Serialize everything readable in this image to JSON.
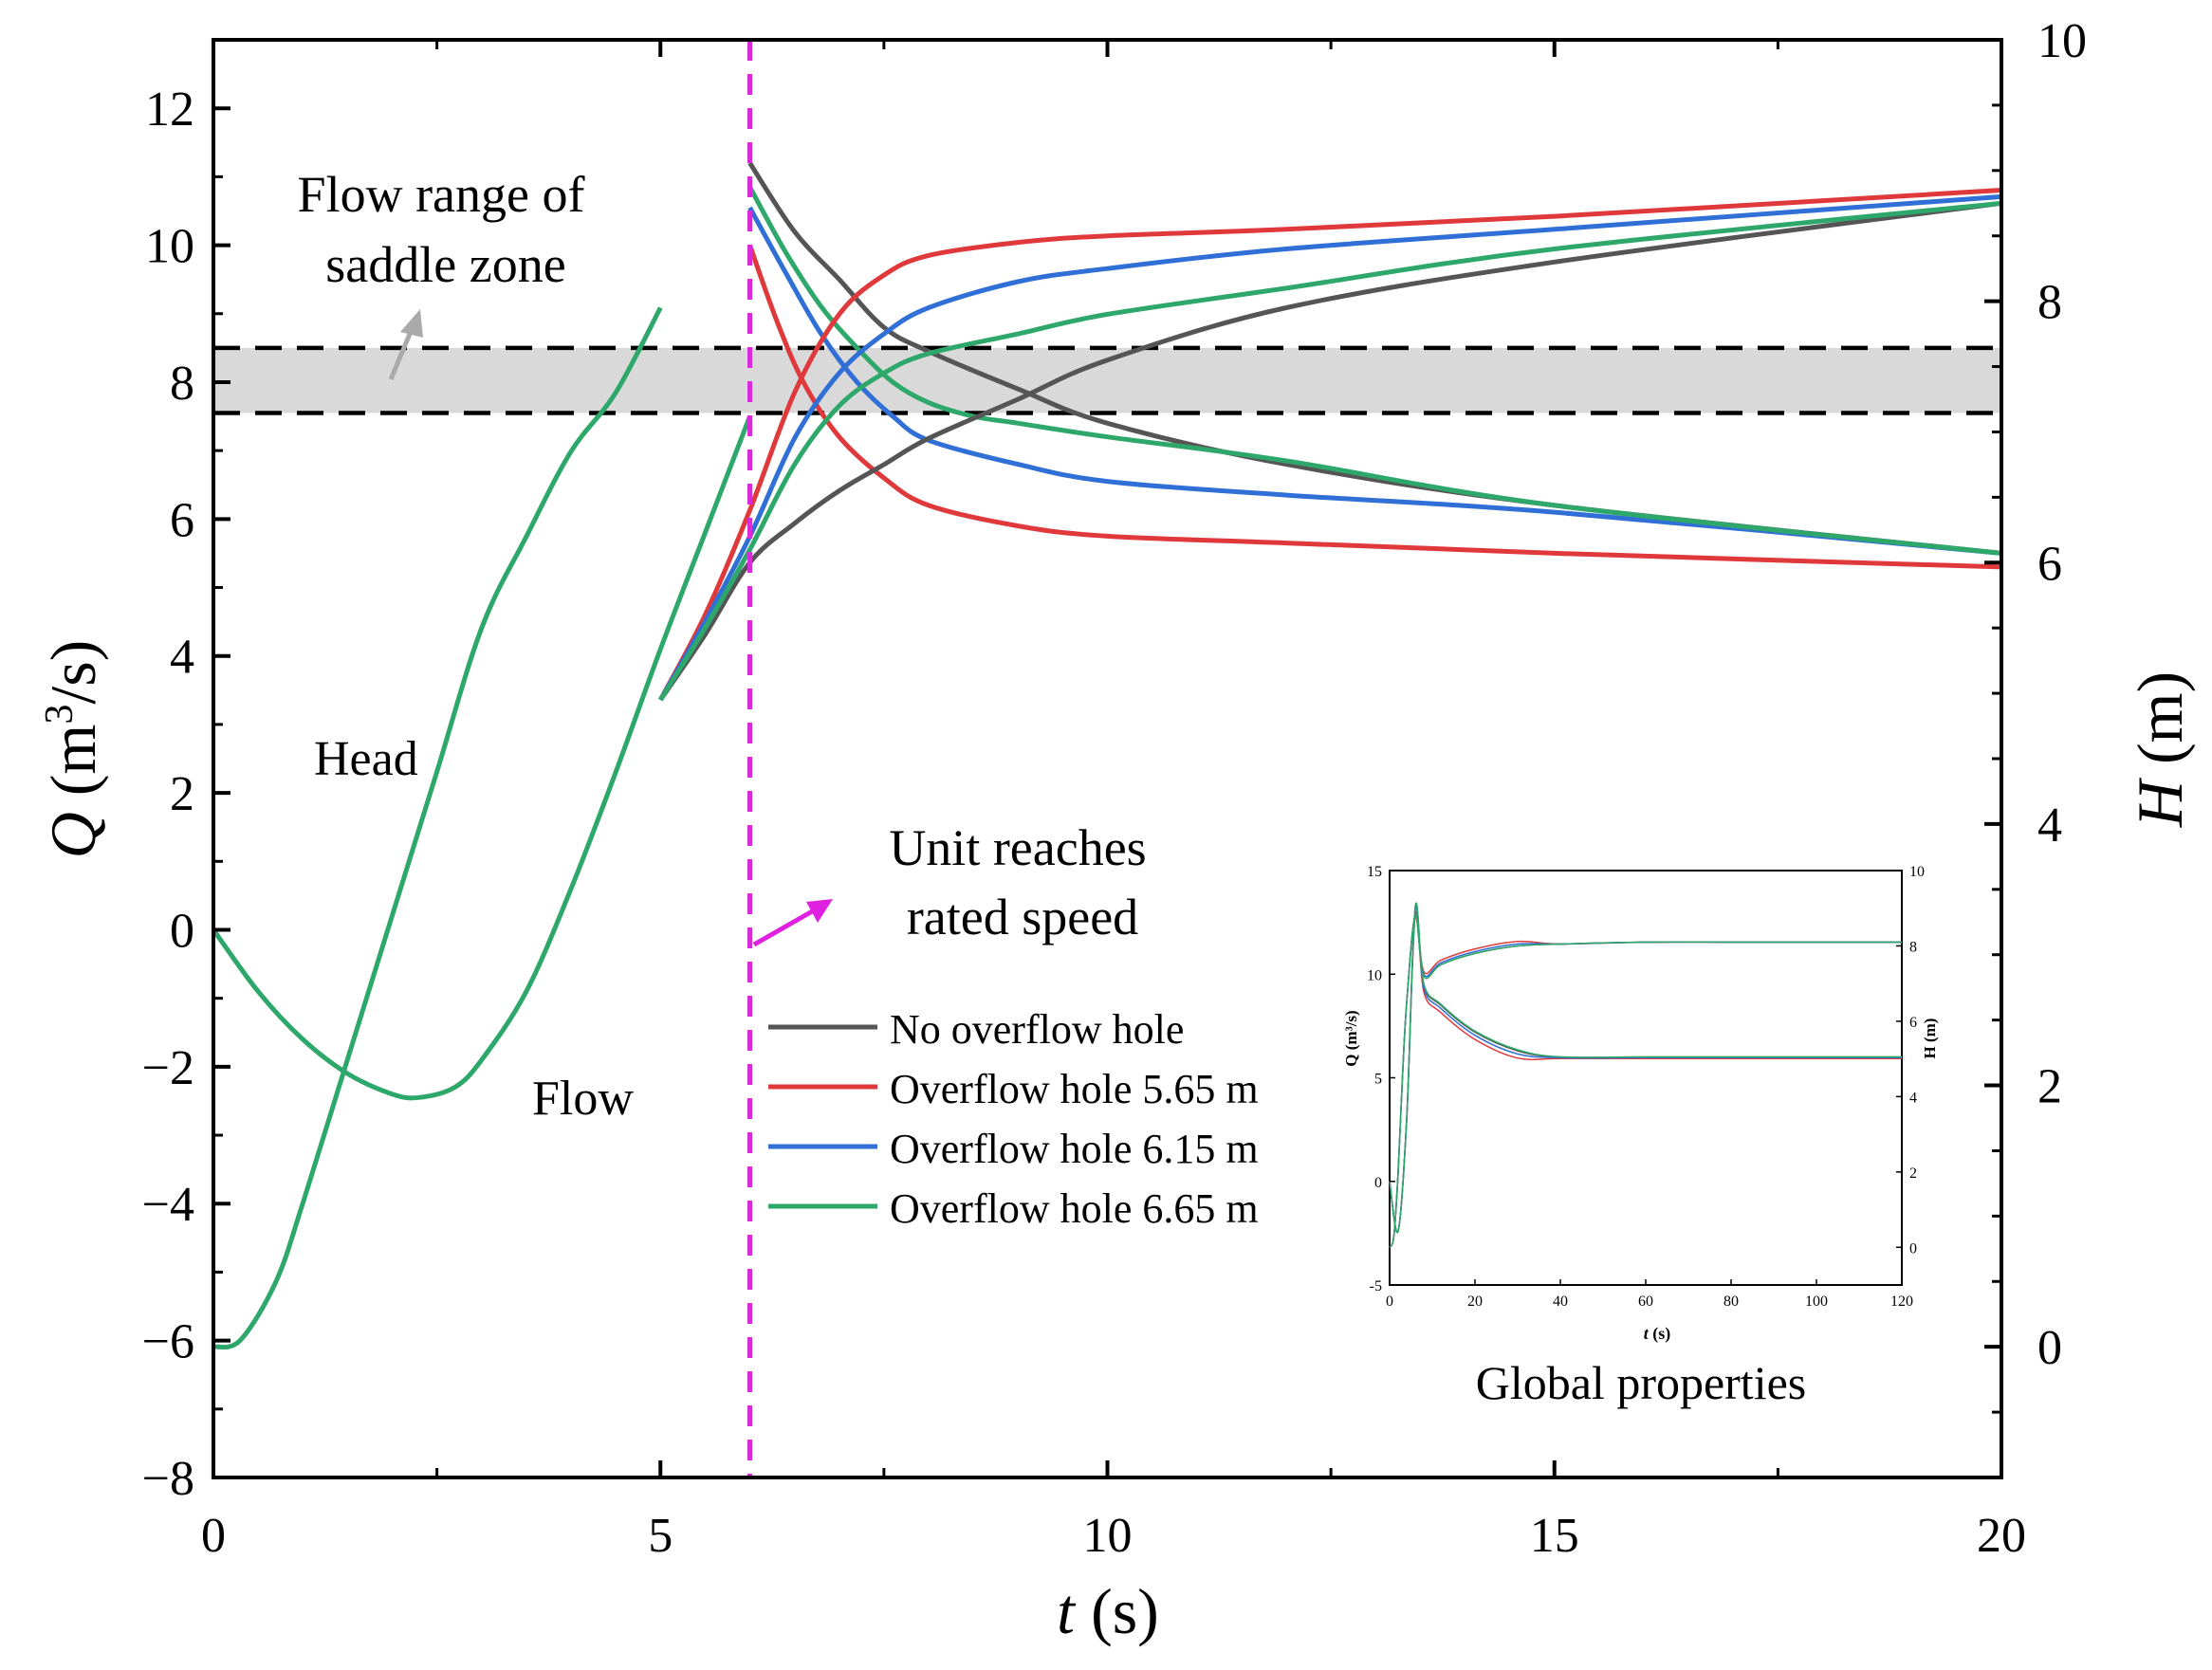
{
  "chart_data": {
    "type": "line",
    "x_axis": {
      "label_var": "t",
      "label_unit": " (s)",
      "range": [
        0,
        20
      ],
      "ticks": [
        0,
        5,
        10,
        15,
        20
      ],
      "tick_labels": [
        "0",
        "5",
        "10",
        "15",
        "20"
      ]
    },
    "y_left": {
      "label_var": "Q",
      "label_unit_pre": " (m",
      "label_unit_sup": "3",
      "label_unit_post": "/s)",
      "range": [
        -8,
        13
      ],
      "ticks": [
        -8,
        -6,
        -4,
        -2,
        0,
        2,
        4,
        6,
        8,
        10,
        12
      ],
      "tick_labels": [
        "−8",
        "−6",
        "−4",
        "−2",
        "0",
        "2",
        "4",
        "6",
        "8",
        "10",
        "12"
      ]
    },
    "y_right": {
      "label_var": "H",
      "label_unit": " (m)",
      "range": [
        -1,
        10
      ],
      "ticks": [
        0,
        2,
        4,
        6,
        8,
        10
      ],
      "tick_labels": [
        "0",
        "2",
        "4",
        "6",
        "8",
        "10"
      ]
    },
    "saddle_band": {
      "q_low": 7.55,
      "q_high": 8.5
    },
    "event_line_t": 6,
    "annotations": {
      "saddle_line1": "Flow range of",
      "saddle_line2": "saddle zone",
      "event_line1": "Unit reaches",
      "event_line2": "rated speed",
      "head": "Head",
      "flow": "Flow"
    },
    "legend": [
      {
        "name": "No overflow hole",
        "color": "#555555"
      },
      {
        "name": "Overflow hole 5.65 m",
        "color": "#e0393b"
      },
      {
        "name": "Overflow hole 6.15 m",
        "color": "#2f6fd6"
      },
      {
        "name": "Overflow hole 6.65 m",
        "color": "#2ea86a"
      }
    ],
    "flow_common": {
      "t": [
        0,
        0.5,
        1,
        1.5,
        2,
        2.3,
        2.7,
        3,
        3.5,
        4,
        4.5,
        5,
        5.5,
        6
      ],
      "q": [
        0,
        -0.9,
        -1.6,
        -2.1,
        -2.4,
        -2.45,
        -2.3,
        -1.9,
        -0.9,
        0.6,
        2.3,
        4.1,
        5.8,
        7.5
      ]
    },
    "head_common": {
      "t": [
        0,
        0.3,
        0.7,
        1,
        1.5,
        2,
        2.5,
        3,
        3.5,
        4,
        4.5,
        5
      ],
      "h": [
        0,
        0.05,
        0.5,
        1.1,
        2.2,
        3.3,
        4.4,
        5.5,
        6.2,
        6.85,
        7.3,
        7.95
      ]
    },
    "flow_series": [
      {
        "name": "No overflow hole",
        "t": [
          6,
          6.5,
          7,
          7.5,
          8,
          9,
          10,
          12,
          15,
          20
        ],
        "q": [
          11.2,
          10.2,
          9.5,
          8.8,
          8.45,
          7.9,
          7.4,
          6.8,
          6.2,
          5.5
        ]
      },
      {
        "name": "Overflow hole 5.65 m",
        "t": [
          6,
          6.3,
          6.6,
          7,
          7.5,
          8,
          9,
          10,
          12,
          15,
          20
        ],
        "q": [
          10.0,
          8.9,
          8.0,
          7.2,
          6.6,
          6.2,
          5.9,
          5.75,
          5.65,
          5.5,
          5.3
        ]
      },
      {
        "name": "Overflow hole 6.15 m",
        "t": [
          6,
          6.4,
          6.8,
          7.2,
          7.6,
          8,
          9,
          10,
          12,
          15,
          20
        ],
        "q": [
          10.55,
          9.6,
          8.7,
          8.0,
          7.5,
          7.15,
          6.8,
          6.55,
          6.35,
          6.1,
          5.5
        ]
      },
      {
        "name": "Overflow hole 6.65 m",
        "t": [
          6,
          6.4,
          6.8,
          7.2,
          7.6,
          8,
          8.5,
          9,
          10,
          12,
          15,
          20
        ],
        "q": [
          10.85,
          9.9,
          9.1,
          8.5,
          8.0,
          7.7,
          7.5,
          7.4,
          7.2,
          6.85,
          6.2,
          5.5
        ]
      }
    ],
    "head_series": [
      {
        "name": "No overflow hole",
        "t": [
          5,
          5.5,
          6,
          6.5,
          7,
          7.5,
          8,
          9,
          10,
          12,
          15,
          20
        ],
        "h": [
          4.95,
          5.45,
          6.0,
          6.3,
          6.55,
          6.75,
          6.95,
          7.25,
          7.55,
          7.95,
          8.3,
          8.75
        ]
      },
      {
        "name": "Overflow hole 5.65 m",
        "t": [
          5,
          5.5,
          6,
          6.5,
          7,
          7.5,
          8,
          9,
          10,
          12,
          15,
          20
        ],
        "h": [
          4.95,
          5.6,
          6.4,
          7.3,
          7.9,
          8.2,
          8.35,
          8.45,
          8.5,
          8.55,
          8.65,
          8.85
        ]
      },
      {
        "name": "Overflow hole 6.15 m",
        "t": [
          5,
          5.5,
          6,
          6.5,
          7,
          7.5,
          8,
          9,
          10,
          12,
          15,
          20
        ],
        "h": [
          4.95,
          5.55,
          6.2,
          6.95,
          7.45,
          7.75,
          7.95,
          8.15,
          8.25,
          8.4,
          8.55,
          8.8
        ]
      },
      {
        "name": "Overflow hole 6.65 m",
        "t": [
          5,
          5.5,
          6,
          6.5,
          7,
          7.5,
          8,
          9,
          10,
          12,
          15,
          20
        ],
        "h": [
          4.95,
          5.5,
          6.1,
          6.75,
          7.2,
          7.45,
          7.6,
          7.75,
          7.9,
          8.1,
          8.4,
          8.75
        ]
      }
    ]
  },
  "inset": {
    "caption": "Global properties",
    "x_label_var": "t",
    "x_label_unit": " (s)",
    "y_left_label": "Q (m³/s)",
    "y_right_label": "H (m)",
    "x_range": [
      0,
      120
    ],
    "x_ticks": [
      0,
      20,
      40,
      60,
      80,
      100,
      120
    ],
    "x_tick_labels": [
      "0",
      "20",
      "40",
      "60",
      "80",
      "100",
      "120"
    ],
    "yl_range": [
      -5,
      15
    ],
    "yl_ticks": [
      -5,
      0,
      5,
      10,
      15
    ],
    "yl_tick_labels": [
      "-5",
      "0",
      "5",
      "10",
      "15"
    ],
    "yr_range": [
      -1,
      10
    ],
    "yr_ticks": [
      0,
      2,
      4,
      6,
      8,
      10
    ],
    "yr_tick_labels": [
      "0",
      "2",
      "4",
      "6",
      "8",
      "10"
    ],
    "flow_curve": {
      "t": [
        0,
        2,
        4,
        6,
        8,
        12,
        20,
        30,
        40,
        60,
        80,
        100,
        120
      ],
      "q": [
        0,
        -2.4,
        3.0,
        13.2,
        9.5,
        8.5,
        7.2,
        6.3,
        6.0,
        6.0,
        6.0,
        6.0,
        6.0
      ]
    },
    "head_curve": {
      "t": [
        0,
        1,
        2,
        3,
        4,
        6,
        8,
        12,
        20,
        30,
        40,
        60,
        80,
        100,
        120
      ],
      "h": [
        0,
        0.3,
        2.0,
        4.5,
        6.5,
        8.8,
        7.2,
        7.5,
        7.8,
        8.0,
        8.05,
        8.1,
        8.1,
        8.1,
        8.1
      ]
    }
  }
}
